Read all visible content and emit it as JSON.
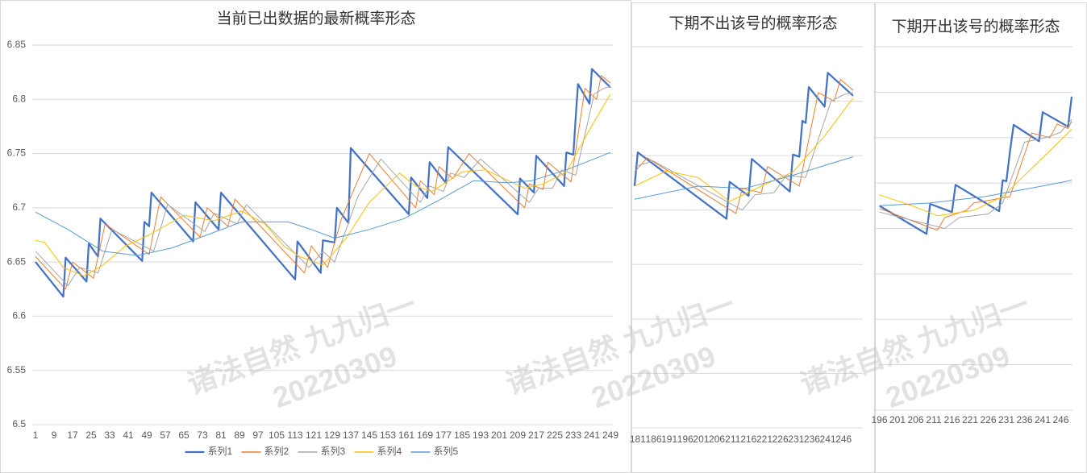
{
  "chart_data": [
    {
      "type": "line",
      "title": "当前已出数据的最新概率形态",
      "xlim": [
        1,
        249
      ],
      "xticks": [
        1,
        9,
        17,
        25,
        33,
        41,
        49,
        57,
        65,
        73,
        81,
        89,
        97,
        105,
        113,
        121,
        129,
        137,
        145,
        153,
        161,
        169,
        177,
        185,
        193,
        201,
        209,
        217,
        225,
        233,
        241,
        249
      ],
      "ylim": [
        6.5,
        6.85
      ],
      "yticks": [
        6.5,
        6.55,
        6.6,
        6.65,
        6.7,
        6.75,
        6.8,
        6.85
      ],
      "ytick_labels": true,
      "grid": true,
      "legend": "bottom",
      "series": [
        {
          "name": "系列1",
          "color": "#4472c4",
          "x": [
            1,
            13,
            14,
            23,
            24,
            28,
            29,
            47,
            48,
            50,
            51,
            69,
            70,
            80,
            81,
            113,
            114,
            124,
            125,
            130,
            131,
            136,
            137,
            162,
            163,
            170,
            171,
            178,
            179,
            209,
            210,
            216,
            217,
            229,
            230,
            233,
            234,
            235,
            240,
            241,
            249
          ],
          "values": [
            6.65,
            6.618,
            6.654,
            6.632,
            6.667,
            6.655,
            6.69,
            6.651,
            6.687,
            6.683,
            6.714,
            6.669,
            6.705,
            6.68,
            6.714,
            6.634,
            6.669,
            6.64,
            6.67,
            6.668,
            6.7,
            6.686,
            6.755,
            6.694,
            6.728,
            6.709,
            6.742,
            6.723,
            6.756,
            6.694,
            6.727,
            6.714,
            6.748,
            6.72,
            6.751,
            6.749,
            6.783,
            6.814,
            6.796,
            6.828,
            6.811
          ]
        },
        {
          "name": "系列2",
          "color": "#ed7d31",
          "x": [
            1,
            14,
            17,
            26,
            31,
            50,
            55,
            72,
            75,
            84,
            87,
            117,
            120,
            127,
            133,
            145,
            165,
            167,
            173,
            175,
            181,
            188,
            212,
            214,
            220,
            222,
            232,
            238,
            243,
            245,
            249
          ],
          "values": [
            6.655,
            6.625,
            6.65,
            6.635,
            6.685,
            6.657,
            6.71,
            6.673,
            6.7,
            6.683,
            6.708,
            6.64,
            6.665,
            6.645,
            6.69,
            6.75,
            6.7,
            6.725,
            6.712,
            6.738,
            6.727,
            6.75,
            6.7,
            6.722,
            6.717,
            6.742,
            6.724,
            6.81,
            6.8,
            6.822,
            6.815
          ]
        },
        {
          "name": "系列3",
          "color": "#a5a5a5",
          "x": [
            1,
            15,
            20,
            28,
            34,
            52,
            58,
            74,
            78,
            88,
            92,
            119,
            125,
            130,
            140,
            150,
            167,
            171,
            177,
            180,
            186,
            193,
            214,
            218,
            224,
            228,
            234,
            242,
            246,
            249
          ],
          "values": [
            6.66,
            6.628,
            6.645,
            6.64,
            6.68,
            6.66,
            6.703,
            6.678,
            6.695,
            6.685,
            6.703,
            6.645,
            6.66,
            6.65,
            6.71,
            6.745,
            6.705,
            6.72,
            6.715,
            6.732,
            6.728,
            6.745,
            6.705,
            6.718,
            6.718,
            6.735,
            6.73,
            6.805,
            6.81,
            6.812
          ]
        },
        {
          "name": "系列4",
          "color": "#ffc000",
          "x": [
            1,
            5,
            13,
            22,
            30,
            40,
            50,
            65,
            78,
            90,
            100,
            108,
            115,
            125,
            135,
            145,
            158,
            165,
            172,
            185,
            195,
            205,
            212,
            220,
            230,
            240,
            249
          ],
          "values": [
            6.67,
            6.668,
            6.645,
            6.637,
            6.647,
            6.665,
            6.675,
            6.693,
            6.688,
            6.697,
            6.685,
            6.665,
            6.655,
            6.647,
            6.672,
            6.705,
            6.732,
            6.72,
            6.715,
            6.733,
            6.735,
            6.725,
            6.718,
            6.722,
            6.733,
            6.772,
            6.805
          ]
        },
        {
          "name": "系列5",
          "color": "#5b9bd5",
          "x": [
            1,
            15,
            30,
            45,
            60,
            75,
            90,
            110,
            120,
            130,
            145,
            160,
            175,
            190,
            205,
            215,
            230,
            249
          ],
          "values": [
            6.696,
            6.68,
            6.66,
            6.656,
            6.663,
            6.675,
            6.687,
            6.687,
            6.68,
            6.672,
            6.68,
            6.69,
            6.707,
            6.725,
            6.723,
            6.725,
            6.735,
            6.751
          ]
        }
      ]
    },
    {
      "type": "line",
      "title": "下期不出该号的概率形态",
      "xlim": [
        179,
        249
      ],
      "xticks": [
        181,
        186,
        191,
        196,
        201,
        206,
        211,
        216,
        221,
        226,
        231,
        236,
        241,
        246
      ],
      "ylim": [
        6.5,
        6.85
      ],
      "yticks": [
        6.5,
        6.55,
        6.6,
        6.65,
        6.7,
        6.75,
        6.8,
        6.85
      ],
      "ytick_labels": false,
      "grid": true,
      "series": [
        {
          "color": "#4472c4",
          "x": [
            180,
            181,
            209,
            210,
            216,
            217,
            229,
            230,
            232,
            233,
            234,
            235,
            240,
            241,
            249
          ],
          "values": [
            6.722,
            6.753,
            6.692,
            6.726,
            6.713,
            6.747,
            6.717,
            6.751,
            6.749,
            6.782,
            6.78,
            6.813,
            6.795,
            6.826,
            6.805
          ]
        },
        {
          "color": "#ed7d31",
          "x": [
            180,
            184,
            212,
            214,
            220,
            222,
            232,
            238,
            243,
            245,
            249
          ],
          "values": [
            6.735,
            6.748,
            6.697,
            6.72,
            6.716,
            6.74,
            6.722,
            6.808,
            6.8,
            6.82,
            6.81
          ]
        },
        {
          "color": "#a5a5a5",
          "x": [
            180,
            186,
            214,
            218,
            224,
            228,
            234,
            242,
            246,
            249
          ],
          "values": [
            6.74,
            6.745,
            6.7,
            6.714,
            6.716,
            6.732,
            6.73,
            6.8,
            6.806,
            6.808
          ]
        },
        {
          "color": "#ffc000",
          "x": [
            180,
            190,
            200,
            210,
            220,
            230,
            240,
            249
          ],
          "values": [
            6.722,
            6.736,
            6.73,
            6.708,
            6.722,
            6.735,
            6.768,
            6.803
          ]
        },
        {
          "color": "#5b9bd5",
          "x": [
            180,
            200,
            215,
            230,
            249
          ],
          "values": [
            6.71,
            6.722,
            6.72,
            6.732,
            6.749
          ]
        }
      ]
    },
    {
      "type": "line",
      "title": "下期开出该号的概率形态",
      "xlim": [
        195,
        249
      ],
      "xticks": [
        196,
        201,
        206,
        211,
        216,
        221,
        226,
        231,
        236,
        241,
        246
      ],
      "ylim": [
        6.5,
        6.9
      ],
      "yticks": [
        6.5,
        6.55,
        6.6,
        6.65,
        6.7,
        6.75,
        6.8,
        6.85,
        6.9
      ],
      "ytick_labels": false,
      "grid": true,
      "series": [
        {
          "color": "#4472c4",
          "x": [
            196,
            209,
            210,
            216,
            217,
            229,
            230,
            231,
            232,
            233,
            240,
            241,
            248,
            249
          ],
          "values": [
            6.725,
            6.694,
            6.727,
            6.718,
            6.748,
            6.719,
            6.753,
            6.752,
            6.785,
            6.814,
            6.796,
            6.828,
            6.812,
            6.845
          ]
        },
        {
          "color": "#ed7d31",
          "x": [
            196,
            212,
            214,
            220,
            222,
            232,
            238,
            243,
            245,
            248,
            249
          ],
          "values": [
            6.722,
            6.698,
            6.712,
            6.72,
            6.728,
            6.735,
            6.805,
            6.8,
            6.815,
            6.81,
            6.818
          ]
        },
        {
          "color": "#a5a5a5",
          "x": [
            196,
            214,
            218,
            226,
            230,
            236,
            242,
            246,
            249
          ],
          "values": [
            6.718,
            6.7,
            6.712,
            6.716,
            6.728,
            6.795,
            6.8,
            6.806,
            6.82
          ]
        },
        {
          "color": "#ffc000",
          "x": [
            196,
            205,
            212,
            222,
            230,
            240,
            249
          ],
          "values": [
            6.737,
            6.725,
            6.714,
            6.72,
            6.735,
            6.774,
            6.809
          ]
        },
        {
          "color": "#5b9bd5",
          "x": [
            196,
            210,
            225,
            240,
            249
          ],
          "values": [
            6.725,
            6.728,
            6.735,
            6.746,
            6.753
          ]
        }
      ]
    }
  ],
  "watermark": [
    "诸法自然 九九归一",
    "20220309"
  ]
}
